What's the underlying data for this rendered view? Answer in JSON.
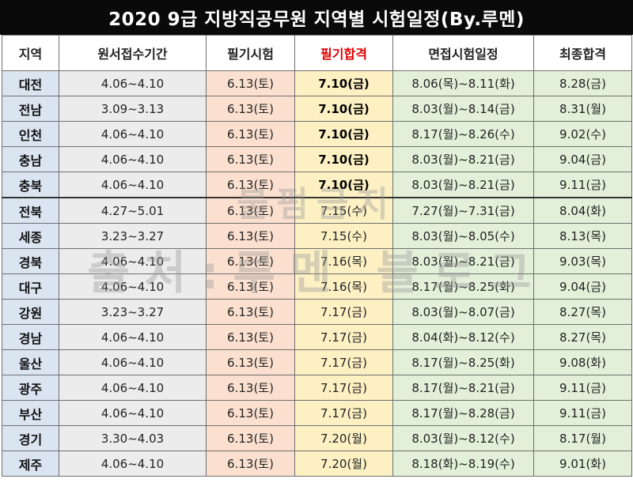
{
  "title": "2020 9급 지방직공무원 지역별 시험일정(By.루멘)",
  "headers": {
    "region": "지역",
    "application": "원서접수기간",
    "written": "필기시험",
    "written_pass": "필기합격",
    "interview": "면접시험일정",
    "final": "최종합격"
  },
  "highlight_color": "#e00000",
  "rows": [
    {
      "region": "대전",
      "application": "4.06~4.10",
      "written": "6.13(토)",
      "written_pass": "7.10(금)",
      "interview": "8.06(목)~8.11(화)",
      "final": "8.28(금)"
    },
    {
      "region": "전남",
      "application": "3.09~3.13",
      "written": "6.13(토)",
      "written_pass": "7.10(금)",
      "interview": "8.03(월)~8.14(금)",
      "final": "8.31(월)"
    },
    {
      "region": "인천",
      "application": "4.06~4.10",
      "written": "6.13(토)",
      "written_pass": "7.10(금)",
      "interview": "8.17(월)~8.26(수)",
      "final": "9.02(수)"
    },
    {
      "region": "충남",
      "application": "4.06~4.10",
      "written": "6.13(토)",
      "written_pass": "7.10(금)",
      "interview": "8.03(월)~8.21(금)",
      "final": "9.04(금)"
    },
    {
      "region": "충북",
      "application": "4.06~4.10",
      "written": "6.13(토)",
      "written_pass": "7.10(금)",
      "interview": "8.03(월)~8.21(금)",
      "final": "9.11(금)"
    },
    {
      "region": "전북",
      "application": "4.27~5.01",
      "written": "6.13(토)",
      "written_pass": "7.15(수)",
      "interview": "7.27(월)~7.31(금)",
      "final": "8.04(화)"
    },
    {
      "region": "세종",
      "application": "3.23~3.27",
      "written": "6.13(토)",
      "written_pass": "7.15(수)",
      "interview": "8.03(월)~8.05(수)",
      "final": "8.13(목)"
    },
    {
      "region": "경북",
      "application": "4.06~4.10",
      "written": "6.13(토)",
      "written_pass": "7.16(목)",
      "interview": "8.03(월)~8.21(금)",
      "final": "9.03(목)"
    },
    {
      "region": "대구",
      "application": "4.06~4.10",
      "written": "6.13(토)",
      "written_pass": "7.16(목)",
      "interview": "8.17(월)~8.25(화)",
      "final": "9.04(금)"
    },
    {
      "region": "강원",
      "application": "3.23~3.27",
      "written": "6.13(토)",
      "written_pass": "7.17(금)",
      "interview": "8.03(월)~8.07(금)",
      "final": "8.27(목)"
    },
    {
      "region": "경남",
      "application": "4.06~4.10",
      "written": "6.13(토)",
      "written_pass": "7.17(금)",
      "interview": "8.04(화)~8.12(수)",
      "final": "8.27(목)"
    },
    {
      "region": "울산",
      "application": "4.06~4.10",
      "written": "6.13(토)",
      "written_pass": "7.17(금)",
      "interview": "8.17(월)~8.25(화)",
      "final": "9.08(화)"
    },
    {
      "region": "광주",
      "application": "4.06~4.10",
      "written": "6.13(토)",
      "written_pass": "7.17(금)",
      "interview": "8.17(월)~8.21(금)",
      "final": "9.11(금)"
    },
    {
      "region": "부산",
      "application": "4.06~4.10",
      "written": "6.13(토)",
      "written_pass": "7.17(금)",
      "interview": "8.17(월)~8.28(금)",
      "final": "9.11(금)"
    },
    {
      "region": "경기",
      "application": "3.30~4.03",
      "written": "6.13(토)",
      "written_pass": "7.20(월)",
      "interview": "8.03(월)~8.12(수)",
      "final": "8.17(월)"
    },
    {
      "region": "제주",
      "application": "4.06~4.10",
      "written": "6.13(토)",
      "written_pass": "7.20(월)",
      "interview": "8.18(화)~8.19(수)",
      "final": "9.01(화)"
    }
  ],
  "watermark": {
    "line1": "불펌금지",
    "line2": "출처:루멘 블로그"
  }
}
